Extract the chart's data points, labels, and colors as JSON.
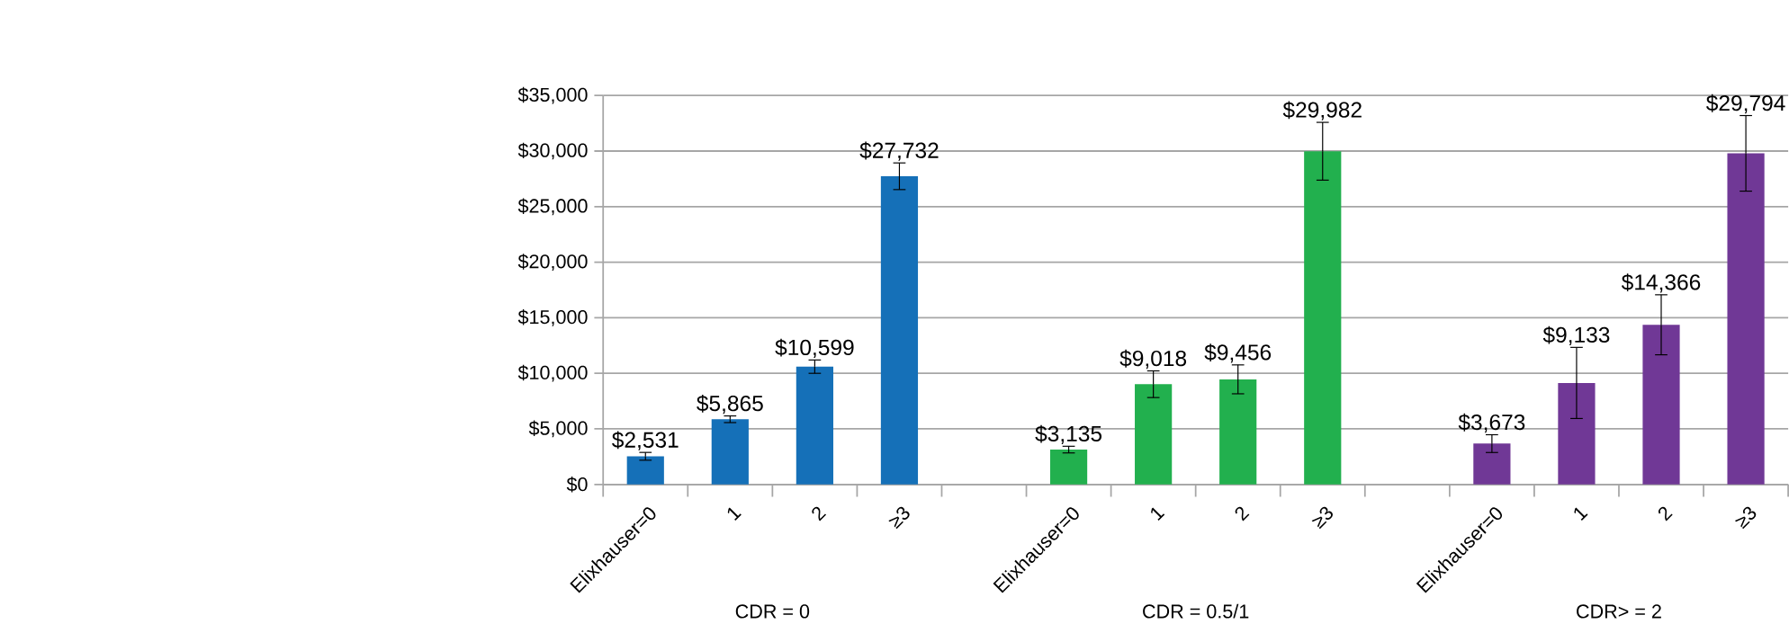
{
  "chart_data": {
    "type": "bar",
    "categories": [
      "Elixhauser=0",
      "1",
      "2",
      "≥3",
      null,
      "Elixhauser=0",
      "1",
      "2",
      "≥3",
      null,
      "Elixhauser=0",
      "1",
      "2",
      "≥3"
    ],
    "values": [
      2531,
      5865,
      10599,
      27732,
      null,
      3135,
      9018,
      9456,
      29982,
      null,
      3673,
      9133,
      14366,
      29794
    ],
    "colors": [
      "#1570b8",
      "#1570b8",
      "#1570b8",
      "#1570b8",
      null,
      "#22b04e",
      "#22b04e",
      "#22b04e",
      "#22b04e",
      null,
      "#703896",
      "#703896",
      "#703896",
      "#703896"
    ],
    "errors": [
      350,
      300,
      600,
      1200,
      null,
      300,
      1200,
      1300,
      2600,
      null,
      800,
      3200,
      2700,
      3400
    ],
    "value_labels": [
      "$2,531",
      "$5,865",
      "$10,599",
      "$27,732",
      null,
      "$3,135",
      "$9,018",
      "$9,456",
      "$29,982",
      null,
      "$3,673",
      "$9,133",
      "$14,366",
      "$29,794"
    ],
    "ylim": [
      0,
      35000
    ],
    "yticks": [
      {
        "value": 0,
        "label": "$0"
      },
      {
        "value": 5000,
        "label": "$5,000"
      },
      {
        "value": 10000,
        "label": "$10,000"
      },
      {
        "value": 15000,
        "label": "$15,000"
      },
      {
        "value": 20000,
        "label": "$20,000"
      },
      {
        "value": 25000,
        "label": "$25,000"
      },
      {
        "value": 30000,
        "label": "$30,000"
      },
      {
        "value": 35000,
        "label": "$35,000"
      }
    ],
    "grid": "y",
    "annotations": [
      "CDR = 0",
      "CDR = 0.5/1",
      "CDR> = 2"
    ]
  }
}
